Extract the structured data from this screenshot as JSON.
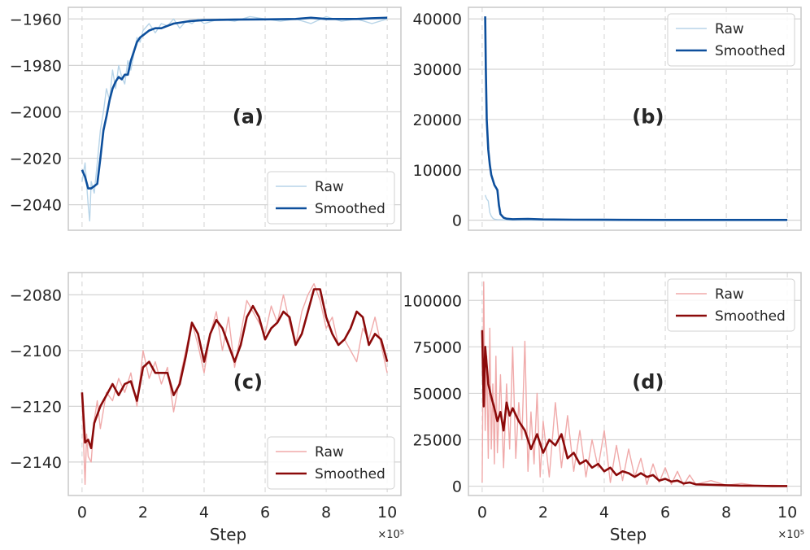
{
  "chart_data": [
    {
      "id": "a",
      "type": "line",
      "panel_label": "(a)",
      "xlabel": "",
      "ylabel": "",
      "xlim": [
        -0.45,
        10.45
      ],
      "ylim": [
        -2051,
        -1955
      ],
      "xticks": [
        0,
        2,
        4,
        6,
        8,
        10
      ],
      "xtick_labels": [
        "0",
        "2",
        "4",
        "6",
        "8",
        "10"
      ],
      "show_xtick_labels": false,
      "yticks": [
        -2040,
        -2020,
        -2000,
        -1980,
        -1960
      ],
      "ytick_labels": [
        "−2040",
        "−2020",
        "−2000",
        "−1980",
        "−1960"
      ],
      "legend_position": "lower-right",
      "color_raw": "#b7d4e8",
      "color_smoothed": "#0d4f9c",
      "series": [
        {
          "name": "Raw",
          "x": [
            0.0,
            0.1,
            0.2,
            0.25,
            0.3,
            0.4,
            0.5,
            0.6,
            0.7,
            0.8,
            0.9,
            1.0,
            1.1,
            1.2,
            1.3,
            1.4,
            1.5,
            1.6,
            1.7,
            1.8,
            1.9,
            2.0,
            2.2,
            2.4,
            2.6,
            2.8,
            3.0,
            3.2,
            3.4,
            3.6,
            3.8,
            4.0,
            4.5,
            5.0,
            5.5,
            6.0,
            6.5,
            7.0,
            7.5,
            8.0,
            8.5,
            9.0,
            9.5,
            10.0
          ],
          "y": [
            -2030,
            -2022,
            -2040,
            -2047,
            -2030,
            -2035,
            -2022,
            -2008,
            -2000,
            -1990,
            -1995,
            -1982,
            -1990,
            -1980,
            -1985,
            -1988,
            -1978,
            -1982,
            -1975,
            -1968,
            -1970,
            -1965,
            -1962,
            -1966,
            -1962,
            -1963,
            -1960,
            -1964,
            -1961,
            -1962,
            -1960,
            -1962,
            -1960,
            -1961,
            -1959,
            -1960,
            -1961,
            -1960,
            -1962,
            -1959,
            -1961,
            -1960,
            -1962,
            -1960
          ]
        },
        {
          "name": "Smoothed",
          "x": [
            0.0,
            0.1,
            0.2,
            0.3,
            0.4,
            0.5,
            0.6,
            0.7,
            0.8,
            0.9,
            1.0,
            1.1,
            1.2,
            1.3,
            1.4,
            1.5,
            1.6,
            1.7,
            1.8,
            1.9,
            2.0,
            2.2,
            2.4,
            2.6,
            2.8,
            3.0,
            3.5,
            4.0,
            5.0,
            6.0,
            7.0,
            7.5,
            8.0,
            9.0,
            9.5,
            10.0
          ],
          "y": [
            -2025,
            -2028,
            -2033,
            -2033,
            -2032,
            -2031,
            -2020,
            -2008,
            -2002,
            -1995,
            -1990,
            -1987,
            -1985,
            -1986,
            -1984,
            -1984,
            -1978,
            -1974,
            -1970,
            -1968,
            -1967,
            -1965,
            -1964,
            -1964,
            -1963,
            -1962,
            -1961,
            -1960.5,
            -1960.3,
            -1960.2,
            -1960,
            -1959.5,
            -1960,
            -1960,
            -1959.7,
            -1959.5
          ]
        }
      ]
    },
    {
      "id": "b",
      "type": "line",
      "panel_label": "(b)",
      "xlabel": "",
      "ylabel": "",
      "xlim": [
        -0.45,
        10.45
      ],
      "ylim": [
        -2000,
        42300
      ],
      "xticks": [
        0,
        2,
        4,
        6,
        8,
        10
      ],
      "xtick_labels": [
        "0",
        "2",
        "4",
        "6",
        "8",
        "10"
      ],
      "show_xtick_labels": false,
      "yticks": [
        0,
        10000,
        20000,
        30000,
        40000
      ],
      "ytick_labels": [
        "0",
        "10000",
        "20000",
        "30000",
        "40000"
      ],
      "legend_position": "upper-right",
      "color_raw": "#b7d4e8",
      "color_smoothed": "#0d4f9c",
      "series": [
        {
          "name": "Raw",
          "x": [
            0.1,
            0.15,
            0.2,
            0.25,
            0.3,
            0.35,
            0.4,
            0.5,
            0.6,
            0.8,
            1.0,
            1.5,
            2.0,
            4.0,
            6.0,
            8.0,
            10.0
          ],
          "y": [
            5000,
            4200,
            3800,
            1500,
            800,
            400,
            200,
            100,
            80,
            50,
            40,
            30,
            25,
            20,
            15,
            15,
            10
          ]
        },
        {
          "name": "Smoothed",
          "x": [
            0.1,
            0.12,
            0.15,
            0.2,
            0.25,
            0.3,
            0.4,
            0.5,
            0.55,
            0.6,
            0.7,
            0.8,
            1.0,
            1.5,
            2.0,
            3.0,
            4.0,
            6.0,
            8.0,
            10.0
          ],
          "y": [
            40500,
            30000,
            20000,
            14000,
            11000,
            9000,
            7000,
            6000,
            3000,
            1200,
            500,
            300,
            200,
            250,
            150,
            100,
            80,
            60,
            50,
            50
          ]
        }
      ]
    },
    {
      "id": "c",
      "type": "line",
      "panel_label": "(c)",
      "xlabel": "Step",
      "ylabel": "",
      "xlim": [
        -0.45,
        10.45
      ],
      "ylim": [
        -2152,
        -2072
      ],
      "xticks": [
        0,
        2,
        4,
        6,
        8,
        10
      ],
      "xtick_labels": [
        "0",
        "2",
        "4",
        "6",
        "8",
        "10"
      ],
      "show_xtick_labels": true,
      "x_scale_label": "×10⁵",
      "yticks": [
        -2140,
        -2120,
        -2100,
        -2080
      ],
      "ytick_labels": [
        "−2140",
        "−2120",
        "−2100",
        "−2080"
      ],
      "legend_position": "lower-right",
      "color_raw": "#f0aaaa",
      "color_smoothed": "#8b0a0a",
      "series": [
        {
          "name": "Raw",
          "x": [
            0.0,
            0.1,
            0.15,
            0.2,
            0.3,
            0.4,
            0.5,
            0.6,
            0.8,
            1.0,
            1.2,
            1.4,
            1.6,
            1.8,
            2.0,
            2.2,
            2.4,
            2.6,
            2.8,
            3.0,
            3.2,
            3.4,
            3.6,
            3.8,
            4.0,
            4.2,
            4.4,
            4.6,
            4.8,
            5.0,
            5.2,
            5.4,
            5.6,
            5.8,
            6.0,
            6.2,
            6.4,
            6.6,
            6.8,
            7.0,
            7.2,
            7.4,
            7.6,
            7.8,
            8.0,
            8.2,
            8.4,
            8.6,
            8.8,
            9.0,
            9.2,
            9.4,
            9.6,
            9.8,
            10.0
          ],
          "y": [
            -2118,
            -2148,
            -2130,
            -2138,
            -2140,
            -2125,
            -2118,
            -2128,
            -2115,
            -2118,
            -2110,
            -2115,
            -2108,
            -2120,
            -2100,
            -2110,
            -2104,
            -2112,
            -2106,
            -2122,
            -2110,
            -2100,
            -2090,
            -2098,
            -2108,
            -2094,
            -2086,
            -2100,
            -2088,
            -2106,
            -2094,
            -2082,
            -2086,
            -2090,
            -2094,
            -2084,
            -2090,
            -2080,
            -2090,
            -2098,
            -2086,
            -2080,
            -2076,
            -2082,
            -2092,
            -2088,
            -2098,
            -2096,
            -2100,
            -2104,
            -2092,
            -2096,
            -2088,
            -2098,
            -2108
          ]
        },
        {
          "name": "Smoothed",
          "x": [
            0.0,
            0.1,
            0.2,
            0.3,
            0.4,
            0.6,
            0.8,
            1.0,
            1.2,
            1.4,
            1.6,
            1.8,
            2.0,
            2.2,
            2.4,
            2.6,
            2.8,
            3.0,
            3.2,
            3.4,
            3.6,
            3.8,
            4.0,
            4.2,
            4.4,
            4.6,
            4.8,
            5.0,
            5.2,
            5.4,
            5.6,
            5.8,
            6.0,
            6.2,
            6.4,
            6.6,
            6.8,
            7.0,
            7.2,
            7.4,
            7.6,
            7.8,
            8.0,
            8.2,
            8.4,
            8.6,
            8.8,
            9.0,
            9.2,
            9.4,
            9.6,
            9.8,
            10.0
          ],
          "y": [
            -2115,
            -2133,
            -2132,
            -2135,
            -2126,
            -2120,
            -2116,
            -2112,
            -2116,
            -2112,
            -2111,
            -2118,
            -2106,
            -2104,
            -2108,
            -2108,
            -2108,
            -2116,
            -2112,
            -2102,
            -2090,
            -2094,
            -2104,
            -2094,
            -2089,
            -2092,
            -2098,
            -2104,
            -2098,
            -2088,
            -2084,
            -2088,
            -2096,
            -2092,
            -2090,
            -2086,
            -2088,
            -2098,
            -2094,
            -2086,
            -2078,
            -2078,
            -2088,
            -2094,
            -2098,
            -2096,
            -2092,
            -2086,
            -2088,
            -2098,
            -2094,
            -2096,
            -2104
          ]
        }
      ]
    },
    {
      "id": "d",
      "type": "line",
      "panel_label": "(d)",
      "xlabel": "Step",
      "ylabel": "",
      "xlim": [
        -0.45,
        10.45
      ],
      "ylim": [
        -5000,
        115000
      ],
      "xticks": [
        0,
        2,
        4,
        6,
        8,
        10
      ],
      "xtick_labels": [
        "0",
        "2",
        "4",
        "6",
        "8",
        "10"
      ],
      "show_xtick_labels": true,
      "x_scale_label": "×10⁵",
      "yticks": [
        0,
        25000,
        50000,
        75000,
        100000
      ],
      "ytick_labels": [
        "0",
        "25000",
        "50000",
        "75000",
        "100000"
      ],
      "legend_position": "upper-right",
      "color_raw": "#f0aaaa",
      "color_smoothed": "#8b0a0a",
      "series": [
        {
          "name": "Raw",
          "x": [
            0.0,
            0.05,
            0.1,
            0.15,
            0.2,
            0.25,
            0.3,
            0.35,
            0.4,
            0.45,
            0.5,
            0.6,
            0.7,
            0.8,
            0.9,
            1.0,
            1.1,
            1.2,
            1.3,
            1.4,
            1.5,
            1.6,
            1.7,
            1.8,
            1.9,
            2.0,
            2.2,
            2.4,
            2.6,
            2.8,
            3.0,
            3.2,
            3.4,
            3.6,
            3.8,
            4.0,
            4.2,
            4.4,
            4.6,
            4.8,
            5.0,
            5.2,
            5.4,
            5.6,
            5.8,
            6.0,
            6.2,
            6.4,
            6.6,
            6.8,
            7.0,
            7.5,
            8.0,
            8.5,
            9.0,
            9.5,
            10.0
          ],
          "y": [
            2000,
            110000,
            30000,
            70000,
            15000,
            85000,
            20000,
            55000,
            12000,
            70000,
            18000,
            60000,
            10000,
            55000,
            20000,
            75000,
            15000,
            45000,
            25000,
            78000,
            8000,
            40000,
            12000,
            50000,
            5000,
            35000,
            5000,
            45000,
            10000,
            38000,
            8000,
            30000,
            5000,
            25000,
            10000,
            30000,
            2000,
            22000,
            3000,
            20000,
            5000,
            15000,
            1000,
            12000,
            2000,
            10000,
            1000,
            8000,
            500,
            6000,
            1000,
            3000,
            500,
            1500,
            300,
            500,
            300
          ]
        },
        {
          "name": "Smoothed",
          "x": [
            0.0,
            0.05,
            0.1,
            0.15,
            0.2,
            0.3,
            0.4,
            0.5,
            0.6,
            0.7,
            0.8,
            0.9,
            1.0,
            1.2,
            1.4,
            1.6,
            1.8,
            2.0,
            2.2,
            2.4,
            2.6,
            2.8,
            3.0,
            3.2,
            3.4,
            3.6,
            3.8,
            4.0,
            4.2,
            4.4,
            4.6,
            4.8,
            5.0,
            5.2,
            5.4,
            5.6,
            5.8,
            6.0,
            6.2,
            6.4,
            6.6,
            6.8,
            7.0,
            7.5,
            8.0,
            8.5,
            9.0,
            9.5,
            10.0
          ],
          "y": [
            84000,
            43000,
            75000,
            65000,
            55000,
            48000,
            42000,
            35000,
            40000,
            30000,
            45000,
            38000,
            42000,
            35000,
            30000,
            20000,
            28000,
            18000,
            25000,
            22000,
            28000,
            15000,
            18000,
            12000,
            14000,
            10000,
            12000,
            8000,
            10000,
            6000,
            8000,
            7000,
            5000,
            7000,
            5000,
            6000,
            3000,
            4000,
            2500,
            3000,
            1500,
            2000,
            1000,
            800,
            500,
            300,
            200,
            100,
            100
          ]
        }
      ]
    }
  ]
}
